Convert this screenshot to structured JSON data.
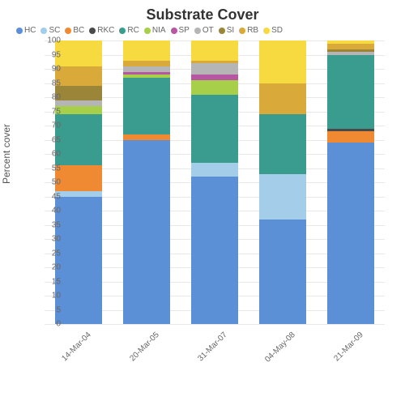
{
  "chart": {
    "type": "stacked-bar",
    "title": "Substrate Cover",
    "ylabel": "Percent cover",
    "title_fontsize": 18,
    "ylabel_fontsize": 12,
    "tick_fontsize": 10,
    "legend_fontsize": 10,
    "background_color": "#ffffff",
    "grid_color": "#e8e8e8",
    "text_color": "#666666",
    "ylim": [
      0,
      100
    ],
    "ytick_step": 5,
    "bar_width": 0.7,
    "categories": [
      "14-Mar-04",
      "20-Mar-05",
      "31-Mar-07",
      "04-May-08",
      "21-Mar-09"
    ],
    "series": [
      {
        "key": "HC",
        "color": "#5b8fd6"
      },
      {
        "key": "SC",
        "color": "#a3cde8"
      },
      {
        "key": "BC",
        "color": "#f08a32"
      },
      {
        "key": "RKC",
        "color": "#4a4a4a"
      },
      {
        "key": "RC",
        "color": "#3a9b8f"
      },
      {
        "key": "NIA",
        "color": "#a8cf4a"
      },
      {
        "key": "SP",
        "color": "#b757a3"
      },
      {
        "key": "OT",
        "color": "#b5b5b5"
      },
      {
        "key": "SI",
        "color": "#9b8538"
      },
      {
        "key": "RB",
        "color": "#d9a93a"
      },
      {
        "key": "SD",
        "color": "#f7d940"
      }
    ],
    "data": [
      {
        "HC": 45,
        "SC": 2,
        "BC": 9,
        "RKC": 0,
        "RC": 18,
        "NIA": 3,
        "SP": 0,
        "OT": 2,
        "SI": 5,
        "RB": 7,
        "SD": 9
      },
      {
        "HC": 65,
        "SC": 0,
        "BC": 2,
        "RKC": 0,
        "RC": 20,
        "NIA": 1,
        "SP": 1,
        "OT": 2,
        "SI": 0,
        "RB": 2,
        "SD": 7
      },
      {
        "HC": 52,
        "SC": 5,
        "BC": 0,
        "RKC": 0,
        "RC": 24,
        "NIA": 5,
        "SP": 2,
        "OT": 4,
        "SI": 0,
        "RB": 1,
        "SD": 7
      },
      {
        "HC": 37,
        "SC": 16,
        "BC": 0,
        "RKC": 0,
        "RC": 21,
        "NIA": 0,
        "SP": 0,
        "OT": 0,
        "SI": 0,
        "RB": 11,
        "SD": 15
      },
      {
        "HC": 64,
        "SC": 0,
        "BC": 4,
        "RKC": 1,
        "RC": 26,
        "NIA": 0,
        "SP": 0,
        "OT": 1,
        "SI": 1,
        "RB": 2,
        "SD": 1
      }
    ]
  }
}
